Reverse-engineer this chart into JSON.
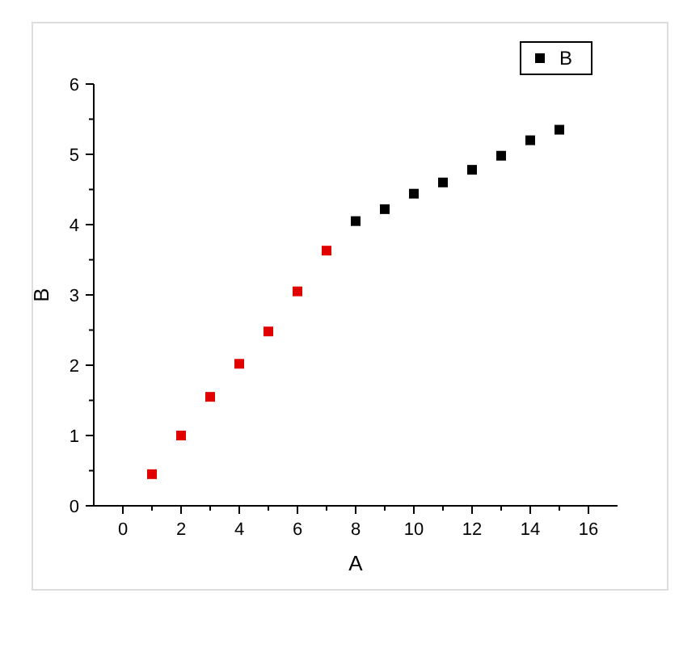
{
  "chart_data": {
    "type": "scatter",
    "xlabel": "A",
    "ylabel": "B",
    "x": [
      1,
      2,
      3,
      4,
      5,
      6,
      7,
      8,
      9,
      10,
      11,
      12,
      13,
      14,
      15
    ],
    "series": [
      {
        "name": "B",
        "color": "#000000",
        "marker": "square",
        "values": [
          0.45,
          1.0,
          1.55,
          2.02,
          2.48,
          3.05,
          3.63,
          4.05,
          4.22,
          4.44,
          4.6,
          4.78,
          4.98,
          5.2,
          5.35
        ],
        "colors": [
          "#e00000",
          "#e00000",
          "#e00000",
          "#e00000",
          "#e00000",
          "#e00000",
          "#e00000",
          "#000000",
          "#000000",
          "#000000",
          "#000000",
          "#000000",
          "#000000",
          "#000000",
          "#000000"
        ]
      }
    ],
    "xlim": [
      -1,
      17
    ],
    "ylim": [
      0,
      6
    ],
    "xticks": [
      0,
      {
        "value": 1,
        "label": null
      },
      2,
      {
        "value": 3,
        "label": null
      },
      4,
      {
        "value": 5,
        "label": null
      },
      6,
      {
        "value": 7,
        "label": null
      },
      8,
      {
        "value": 9,
        "label": null
      },
      10,
      {
        "value": 11,
        "label": null
      },
      12,
      {
        "value": 13,
        "label": null
      },
      14,
      {
        "value": 15,
        "label": null
      },
      16
    ],
    "yticks": [
      0,
      {
        "value": 0.5,
        "label": null
      },
      1,
      {
        "value": 1.5,
        "label": null
      },
      2,
      {
        "value": 2.5,
        "label": null
      },
      3,
      {
        "value": 3.5,
        "label": null
      },
      4,
      {
        "value": 4.5,
        "label": null
      },
      5,
      {
        "value": 5.5,
        "label": null
      },
      6
    ],
    "legend": "top right",
    "grid": false
  }
}
